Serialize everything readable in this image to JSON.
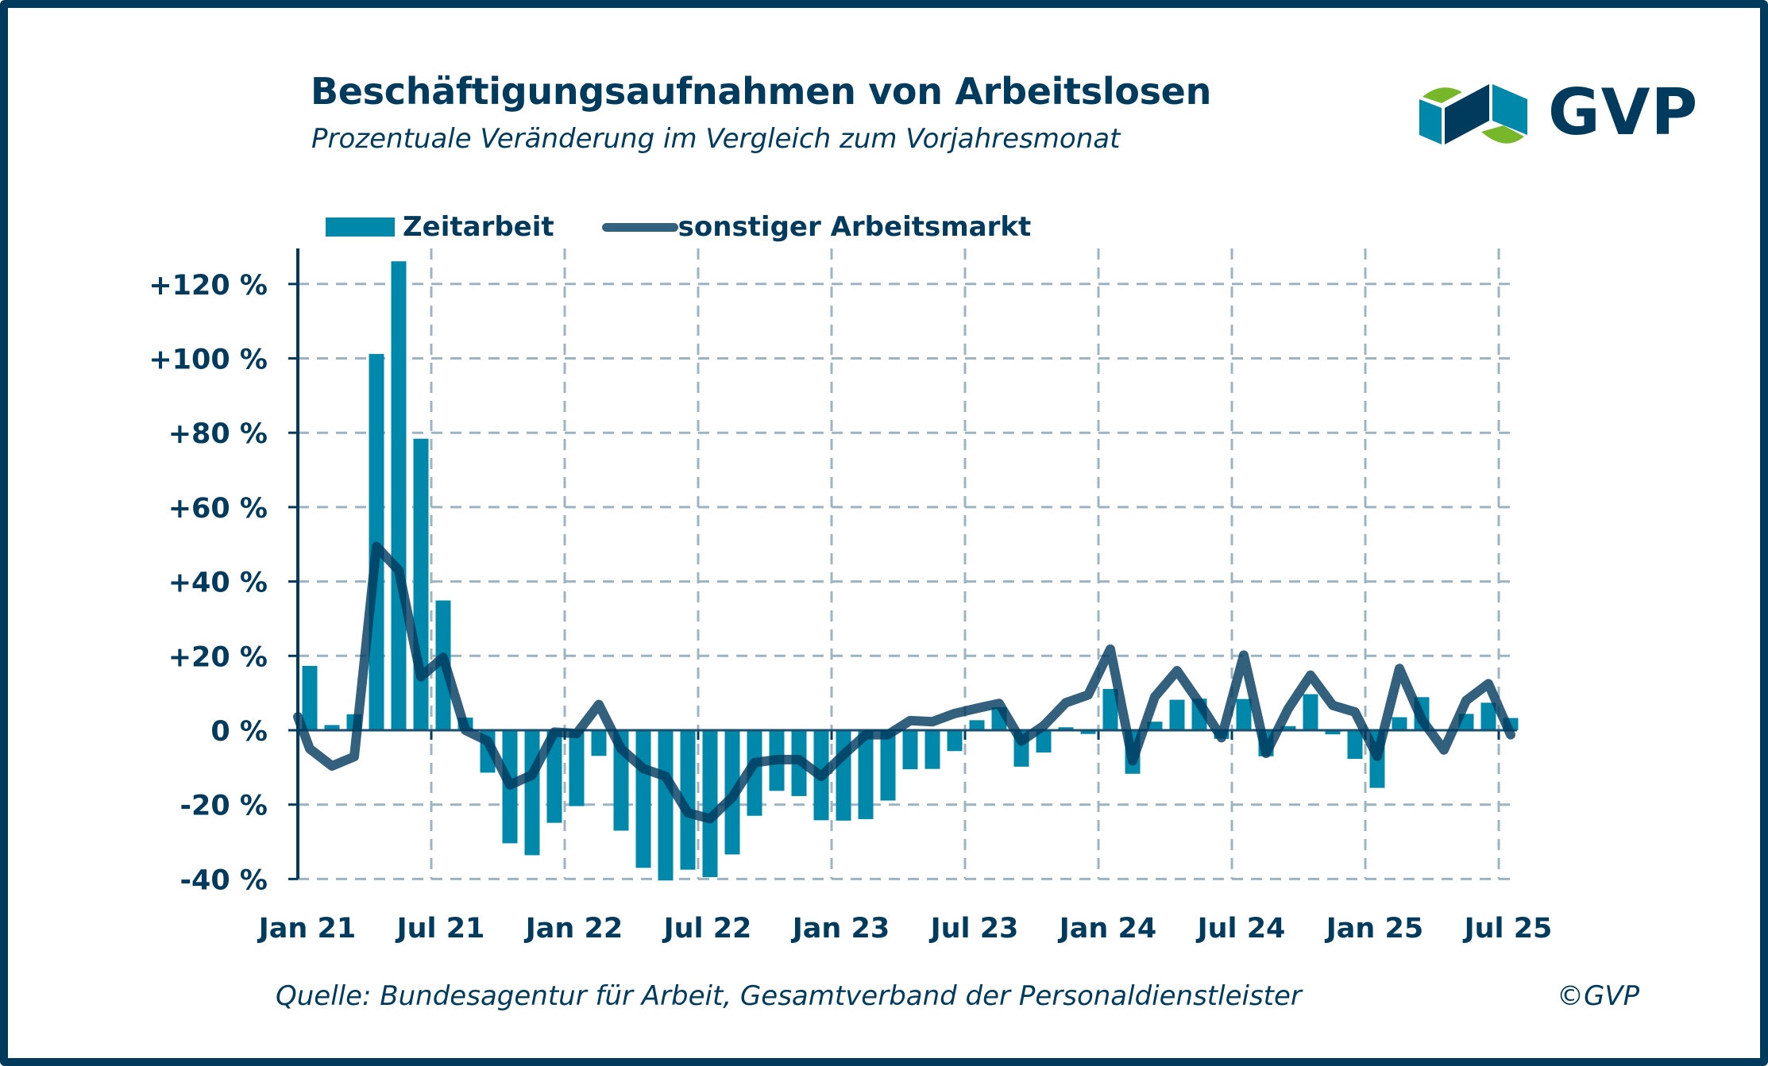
{
  "header": {
    "title": "Beschäftigungsaufnahmen von Arbeitslosen",
    "subtitle": "Prozentuale Veränderung im Vergleich zum Vorjahresmonat"
  },
  "logo": {
    "text": "GVP",
    "colors": {
      "navy": "#003a5d",
      "blue": "#0088ab",
      "green": "#76b82a"
    }
  },
  "legend": [
    {
      "label": "Zeitarbeit",
      "type": "bar",
      "color": "#0088ab"
    },
    {
      "label": "sonstiger Arbeitsmarkt",
      "type": "line",
      "color": "#33627f"
    }
  ],
  "footer": {
    "source": "Quelle: Bundesagentur für Arbeit, Gesamtverband der Personaldienstleister",
    "copyright": "©GVP"
  },
  "chart_data": {
    "type": "bar+line",
    "title": "Beschäftigungsaufnahmen von Arbeitslosen",
    "subtitle": "Prozentuale Veränderung im Vergleich zum Vorjahresmonat",
    "xlabel": "",
    "ylabel": "",
    "ylim": [
      -40,
      130
    ],
    "y_ticks": [
      -40,
      -20,
      0,
      20,
      40,
      60,
      80,
      100,
      120
    ],
    "y_tick_labels": [
      "-40 %",
      "-20 %",
      "0 %",
      "+20 %",
      "+40 %",
      "+60 %",
      "+80 %",
      "+100 %",
      "+120 %"
    ],
    "x_tick_labels": [
      "Jan 21",
      "Jul 21",
      "Jan 22",
      "Jul 22",
      "Jan 23",
      "Jul 23",
      "Jan 24",
      "Jul 24",
      "Jan 25",
      "Jul 25"
    ],
    "grid": true,
    "legend_position": "top-left",
    "categories": [
      "Jan 21",
      "Feb 21",
      "Mar 21",
      "Apr 21",
      "May 21",
      "Jun 21",
      "Jul 21",
      "Aug 21",
      "Sep 21",
      "Oct 21",
      "Nov 21",
      "Dec 21",
      "Jan 22",
      "Feb 22",
      "Mar 22",
      "Apr 22",
      "May 22",
      "Jun 22",
      "Jul 22",
      "Aug 22",
      "Sep 22",
      "Oct 22",
      "Nov 22",
      "Dec 22",
      "Jan 23",
      "Feb 23",
      "Mar 23",
      "Apr 23",
      "May 23",
      "Jun 23",
      "Jul 23",
      "Aug 23",
      "Sep 23",
      "Oct 23",
      "Nov 23",
      "Dec 23",
      "Jan 24",
      "Feb 24",
      "Mar 24",
      "Apr 24",
      "May 24",
      "Jun 24",
      "Jul 24",
      "Aug 24",
      "Sep 24",
      "Oct 24",
      "Nov 24",
      "Dec 24",
      "Jan 25",
      "Feb 25",
      "Mar 25",
      "Apr 25",
      "May 25",
      "Jun 25",
      "Jul 25"
    ],
    "series": [
      {
        "name": "Zeitarbeit",
        "type": "bar",
        "color": "#0088ab",
        "values": [
          17.3,
          1.4,
          4.3,
          101.2,
          126.1,
          78.4,
          34.9,
          3.4,
          -11.4,
          -30.4,
          -33.6,
          -24.9,
          -20.4,
          -6.9,
          -27.0,
          -37.0,
          -40.4,
          -37.5,
          -39.5,
          -33.4,
          -23.0,
          -16.3,
          -17.7,
          -24.2,
          -24.3,
          -23.9,
          -18.9,
          -10.5,
          -10.4,
          -5.6,
          2.7,
          6.2,
          -9.8,
          -6.0,
          0.8,
          -1.0,
          11.1,
          -11.7,
          2.3,
          8.2,
          8.5,
          -2.3,
          8.4,
          -7.0,
          1.1,
          9.7,
          -1.1,
          -7.7,
          -15.5,
          3.5,
          8.9,
          0.0,
          4.4,
          7.4,
          3.3
        ]
      },
      {
        "name": "sonstiger Arbeitsmarkt",
        "type": "line",
        "color": "#33627f",
        "start_value_at_axis": 3.6,
        "values": [
          -5.0,
          -9.6,
          -7.1,
          49.4,
          43.0,
          14.4,
          19.6,
          0.0,
          -2.9,
          -14.7,
          -12.0,
          -0.5,
          -0.9,
          6.9,
          -5.0,
          -10.3,
          -12.4,
          -22.2,
          -23.8,
          -18.0,
          -8.7,
          -7.9,
          -7.9,
          -12.4,
          -6.6,
          -1.2,
          -1.2,
          2.6,
          2.3,
          4.5,
          5.9,
          7.2,
          -2.9,
          1.2,
          7.4,
          9.5,
          21.8,
          -8.2,
          9.0,
          16.0,
          7.4,
          -2.0,
          20.2,
          -6.2,
          5.8,
          14.8,
          6.7,
          4.9,
          -7.0,
          16.6,
          2.9,
          -5.3,
          8.0,
          12.5,
          -1.2
        ]
      }
    ]
  }
}
